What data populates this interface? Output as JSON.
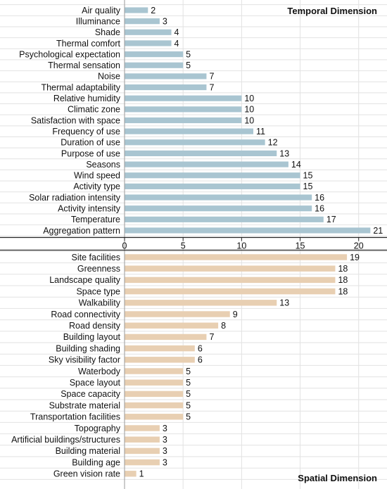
{
  "chart_data": [
    {
      "type": "bar",
      "orientation": "horizontal",
      "title": "Temporal Dimension",
      "color": "#a9c5d1",
      "categories": [
        "Air quality",
        "Illuminance",
        "Shade",
        "Thermal comfort",
        "Psychological expectation",
        "Thermal sensation",
        "Noise",
        "Thermal adaptability",
        "Relative humidity",
        "Climatic zone",
        "Satisfaction with space",
        "Frequency of use",
        "Duration of use",
        "Purpose of use",
        "Seasons",
        "Wind speed",
        "Activity type",
        "Solar radiation intensity",
        "Activity intensity",
        "Temperature",
        "Aggregation pattern"
      ],
      "values": [
        2,
        3,
        4,
        4,
        5,
        5,
        7,
        7,
        10,
        10,
        10,
        11,
        12,
        13,
        14,
        15,
        15,
        16,
        16,
        17,
        21
      ],
      "xlim": [
        0,
        22
      ],
      "xticks": [
        0,
        5,
        10,
        15,
        20
      ],
      "grid": true,
      "xlabel": "",
      "ylabel": ""
    },
    {
      "type": "bar",
      "orientation": "horizontal",
      "title": "Spatial Dimension",
      "color": "#e8cfb2",
      "categories": [
        "Site facilities",
        "Greenness",
        "Landscape quality",
        "Space type",
        "Walkability",
        "Road connectivity",
        "Road density",
        "Building layout",
        "Building shading",
        "Sky visibility factor",
        "Waterbody",
        "Space layout",
        "Space capacity",
        "Substrate material",
        "Transportation facilities",
        "Topography",
        "Artificial buildings/structures",
        "Building material",
        "Building age",
        "Green vision rate"
      ],
      "values": [
        19,
        18,
        18,
        18,
        13,
        9,
        8,
        7,
        6,
        6,
        5,
        5,
        5,
        5,
        5,
        3,
        3,
        3,
        3,
        1
      ],
      "xlim": [
        0,
        22
      ],
      "grid": true,
      "xlabel": "",
      "ylabel": ""
    }
  ]
}
